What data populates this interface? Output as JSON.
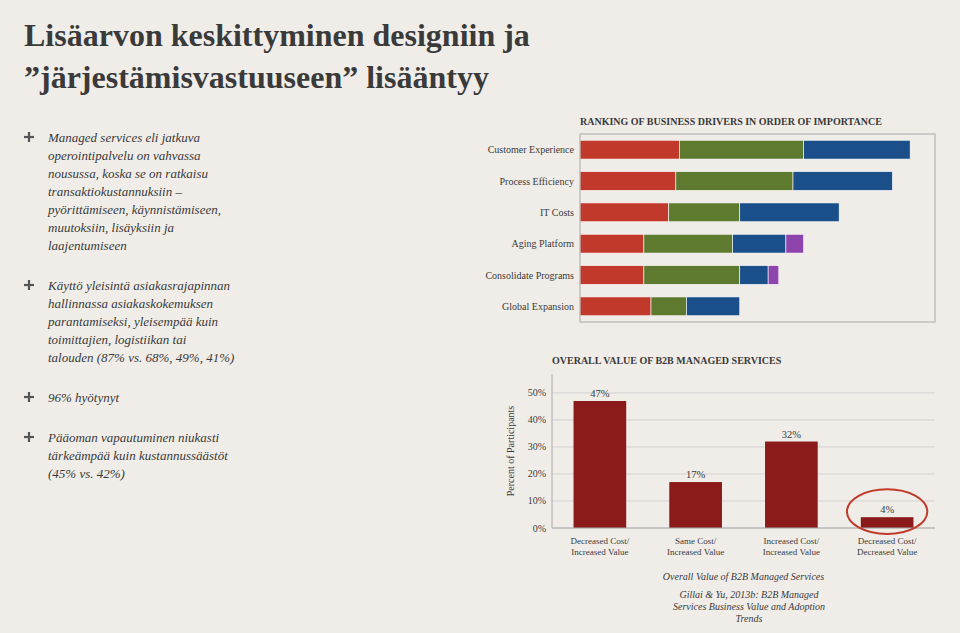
{
  "title": "Lisäarvon keskittyminen designiin ja\n”järjestämisvastuuseen” lisääntyy",
  "annotations": [
    "Managed services eli jatkuva\noperointipalvelu on vahvassa\nnousussa, koska se on ratkaisu\ntransaktiokustannuksiin –\npyörittämiseen, käynnistämiseen,\nmuutoksiin, lisäyksiin ja\nlaajentumiseen",
    "Käyttö yleisintä asiakasrajapinnan\nhallinnassa asiakaskokemuksen\nparantamiseksi, yleisempää kuin\ntoimittajien, logistiikan tai\ntalouden (87% vs. 68%, 49%, 41%)",
    "96% hyötynyt",
    "Pääoman vapautuminen niukasti\ntärkeämpää kuin kustannussäästöt\n(45% vs. 42%)",
    "Gillai & Yu, 2013b: B2B Managed\nServices Business Value and Adoption\nTrends"
  ],
  "chart_data": [
    {
      "type": "bar",
      "title": "RANKING OF BUSINESS DRIVERS IN ORDER OF IMPORTANCE",
      "orientation": "horizontal",
      "stacked": true,
      "categories": [
        "Customer Experience",
        "Process Efficiency",
        "IT Costs",
        "Aging Platform",
        "Consolidate Programs",
        "Global Expansion"
      ],
      "series": [
        {
          "color": "#c0392b",
          "values": [
            28,
            27,
            25,
            18,
            18,
            20
          ]
        },
        {
          "color": "#5d7a2f",
          "values": [
            35,
            33,
            20,
            25,
            27,
            10
          ]
        },
        {
          "color": "#1a4f8a",
          "values": [
            30,
            28,
            28,
            15,
            8,
            15
          ]
        },
        {
          "color": "#8e44ad",
          "values": [
            0,
            0,
            0,
            5,
            3,
            0
          ]
        }
      ],
      "xlim": [
        0,
        100
      ],
      "tick_labels": "y"
    },
    {
      "type": "bar",
      "title": "OVERALL VALUE OF B2B MANAGED SERVICES",
      "categories": [
        "Decreased Cost/\nIncreased Value",
        "Same Cost/\nIncreased Value",
        "Increased Cost/\nIncreased Value",
        "Decreased Cost/\nDecreased Value"
      ],
      "values": [
        47,
        17,
        32,
        4
      ],
      "value_labels": [
        "47%",
        "17%",
        "32%",
        "4%"
      ],
      "data_labels": true,
      "color": "#8b1a1a",
      "x_label": "Overall Value of B2B Managed Services",
      "y_label": "Percent of Participants",
      "ylim": [
        0,
        57
      ],
      "yticks": [
        {
          "value": 0,
          "label": "0%"
        },
        {
          "value": 10,
          "label": "10%"
        },
        {
          "value": 20,
          "label": "20%"
        },
        {
          "value": 30,
          "label": "30%"
        },
        {
          "value": 40,
          "label": "40%"
        },
        {
          "value": 50,
          "label": "50%"
        }
      ],
      "grid": true
    }
  ]
}
